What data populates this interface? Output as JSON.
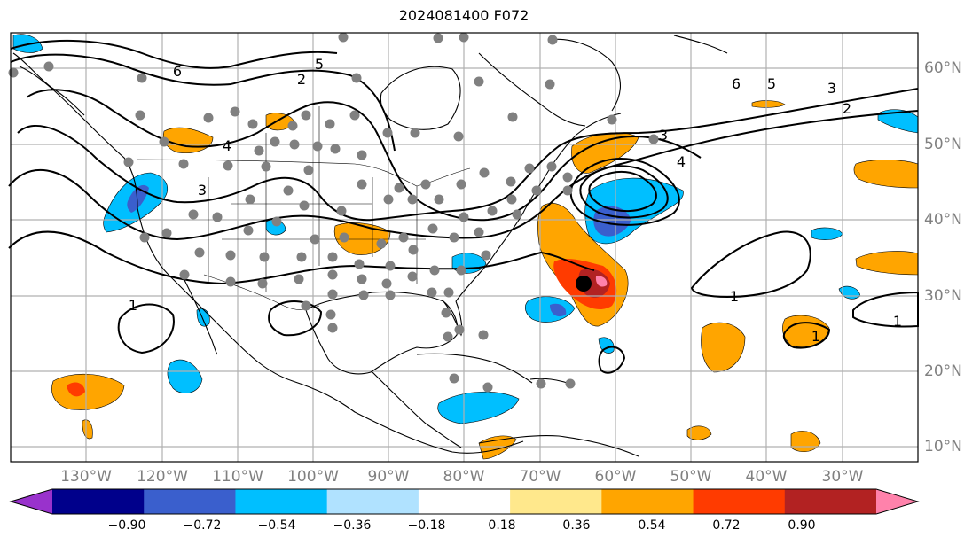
{
  "title": "2024081400 F072",
  "lon_ticks": [
    "130°W",
    "120°W",
    "110°W",
    "100°W",
    "90°W",
    "80°W",
    "70°W",
    "60°W",
    "50°W",
    "40°W",
    "30°W"
  ],
  "lat_ticks": [
    "60°N",
    "50°N",
    "40°N",
    "30°N",
    "20°N",
    "10°N"
  ],
  "colorbar": {
    "labels": [
      "−0.90",
      "−0.72",
      "−0.54",
      "−0.36",
      "−0.18",
      "0.18",
      "0.36",
      "0.54",
      "0.72",
      "0.90"
    ],
    "colors": [
      "#9932cc",
      "#00008b",
      "#3a5fcd",
      "#00bfff",
      "#b0e2ff",
      "#ffffff",
      "#ffe88c",
      "#ffa500",
      "#ff3b00",
      "#b22222",
      "#ff82ab"
    ]
  },
  "contour_labels": [
    "6",
    "5",
    "4",
    "3",
    "2",
    "1"
  ],
  "colors": {
    "grid": "#b0b0b0",
    "station": "#808080",
    "marker": "#000000"
  }
}
